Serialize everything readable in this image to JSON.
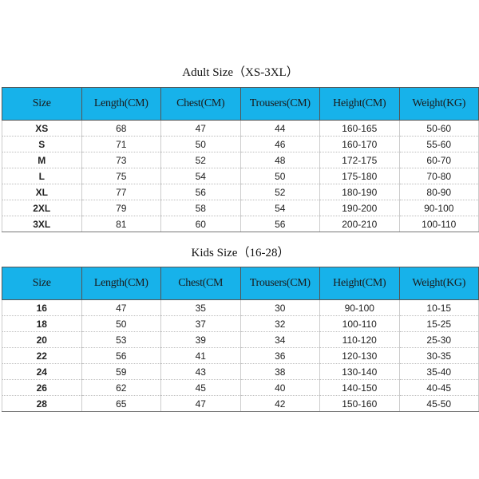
{
  "adult": {
    "title": "Adult Size（XS-3XL）",
    "headers": [
      "Size",
      "Length(CM)",
      "Chest(CM)",
      "Trousers(CM)",
      "Height(CM)",
      "Weight(KG)"
    ],
    "rows": [
      [
        "XS",
        "68",
        "47",
        "44",
        "160-165",
        "50-60"
      ],
      [
        "S",
        "71",
        "50",
        "46",
        "160-170",
        "55-60"
      ],
      [
        "M",
        "73",
        "52",
        "48",
        "172-175",
        "60-70"
      ],
      [
        "L",
        "75",
        "54",
        "50",
        "175-180",
        "70-80"
      ],
      [
        "XL",
        "77",
        "56",
        "52",
        "180-190",
        "80-90"
      ],
      [
        "2XL",
        "79",
        "58",
        "54",
        "190-200",
        "90-100"
      ],
      [
        "3XL",
        "81",
        "60",
        "56",
        "200-210",
        "100-110"
      ]
    ]
  },
  "kids": {
    "title": "Kids Size（16-28）",
    "headers": [
      "Size",
      "Length(CM)",
      "Chest(CM",
      "Trousers(CM)",
      "Height(CM)",
      "Weight(KG)"
    ],
    "rows": [
      [
        "16",
        "47",
        "35",
        "30",
        "90-100",
        "10-15"
      ],
      [
        "18",
        "50",
        "37",
        "32",
        "100-110",
        "15-25"
      ],
      [
        "20",
        "53",
        "39",
        "34",
        "110-120",
        "25-30"
      ],
      [
        "22",
        "56",
        "41",
        "36",
        "120-130",
        "30-35"
      ],
      [
        "24",
        "59",
        "43",
        "38",
        "130-140",
        "35-40"
      ],
      [
        "26",
        "62",
        "45",
        "40",
        "140-150",
        "40-45"
      ],
      [
        "28",
        "65",
        "47",
        "42",
        "150-160",
        "45-50"
      ]
    ]
  },
  "colors": {
    "header_bg": "#17b2ea"
  }
}
